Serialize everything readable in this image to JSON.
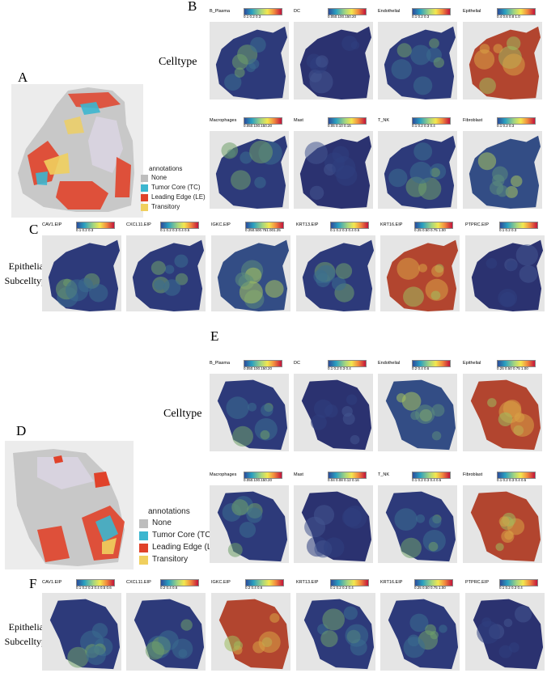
{
  "panel_letters": {
    "a": "A",
    "b": "B",
    "c": "C",
    "d": "D",
    "e": "E",
    "f": "F"
  },
  "row_labels": {
    "celltype": "Celltype",
    "epithelial_line1": "Epithelial",
    "epithelial_line2": "Subcelltype"
  },
  "legend": {
    "title": "annotations",
    "items": [
      {
        "label": "None",
        "color": "#bdbdbd"
      },
      {
        "label": "Tumor Core (TC)",
        "color": "#3cb6cf"
      },
      {
        "label": "Leading Edge (LE)",
        "color": "#e0422a"
      },
      {
        "label": "Transitory",
        "color": "#f0cf5e"
      }
    ]
  },
  "colors": {
    "low": "#2c4c99",
    "mid": "#a7d67e",
    "high": "#c2133b"
  },
  "panel_b": {
    "row1": [
      {
        "name": "B_Plasma",
        "ticks": "0.1   0.2   0.3"
      },
      {
        "name": "DC",
        "ticks": "0.050.100.150.20"
      },
      {
        "name": "Endothelial",
        "ticks": "0.1   0.2   0.3"
      },
      {
        "name": "Epithelial",
        "ticks": "0.4  0.6  0.8  1.0"
      }
    ],
    "row2": [
      {
        "name": "Macrophages",
        "ticks": "0.050.100.150.20"
      },
      {
        "name": "Mast",
        "ticks": "0.05  0.10  0.15"
      },
      {
        "name": "T_NK",
        "ticks": "0.1  0.2  0.3  0.4"
      },
      {
        "name": "Fibroblast",
        "ticks": "0.1    0.2    0.3"
      }
    ]
  },
  "panel_c": [
    {
      "name": "CAV1.EIP",
      "ticks": "0.1   0.2   0.3"
    },
    {
      "name": "CXCL11.EIP",
      "ticks": "0.1 0.2 0.3 0.4 0.5"
    },
    {
      "name": "IGKC.EIP",
      "ticks": "0.250.500.751.001.25"
    },
    {
      "name": "KRT13.EIP",
      "ticks": "0.1 0.2 0.3 0.4 0.5"
    },
    {
      "name": "KRT16.EIP",
      "ticks": "0.25 0.50 0.75 1.00"
    },
    {
      "name": "PTPRC.EIP",
      "ticks": "0.1   0.2   0.3"
    }
  ],
  "panel_e": {
    "row1": [
      {
        "name": "B_Plasma",
        "ticks": "0.050.100.150.20"
      },
      {
        "name": "DC",
        "ticks": "0.1  0.2  0.3  0.4"
      },
      {
        "name": "Endothelial",
        "ticks": "0.2    0.4    0.6"
      },
      {
        "name": "Epithelial",
        "ticks": "0.25 0.50 0.75 1.00"
      }
    ],
    "row2": [
      {
        "name": "Macrophages",
        "ticks": "0.050.100.150.20"
      },
      {
        "name": "Mast",
        "ticks": "0.04 0.08 0.12 0.16"
      },
      {
        "name": "T_NK",
        "ticks": "0.1 0.2 0.3 0.4 0.5"
      },
      {
        "name": "Fibroblast",
        "ticks": "0.1 0.2 0.3 0.4 0.5"
      }
    ]
  },
  "panel_f": [
    {
      "name": "CAV1.EIP",
      "ticks": "0.1 0.2 0.3 0.4 0.5 0.6"
    },
    {
      "name": "CXCL11.EIP",
      "ticks": "0.2    0.4    0.6"
    },
    {
      "name": "IGKC.EIP",
      "ticks": "0.2   0.4   0.6"
    },
    {
      "name": "KRT13.EIP",
      "ticks": "0.1  0.2  0.3  0.4"
    },
    {
      "name": "KRT16.EIP",
      "ticks": "0.25 0.50 0.75 1.00"
    },
    {
      "name": "PTPRC.EIP",
      "ticks": "0.1 0.2 0.3 0.4"
    }
  ]
}
